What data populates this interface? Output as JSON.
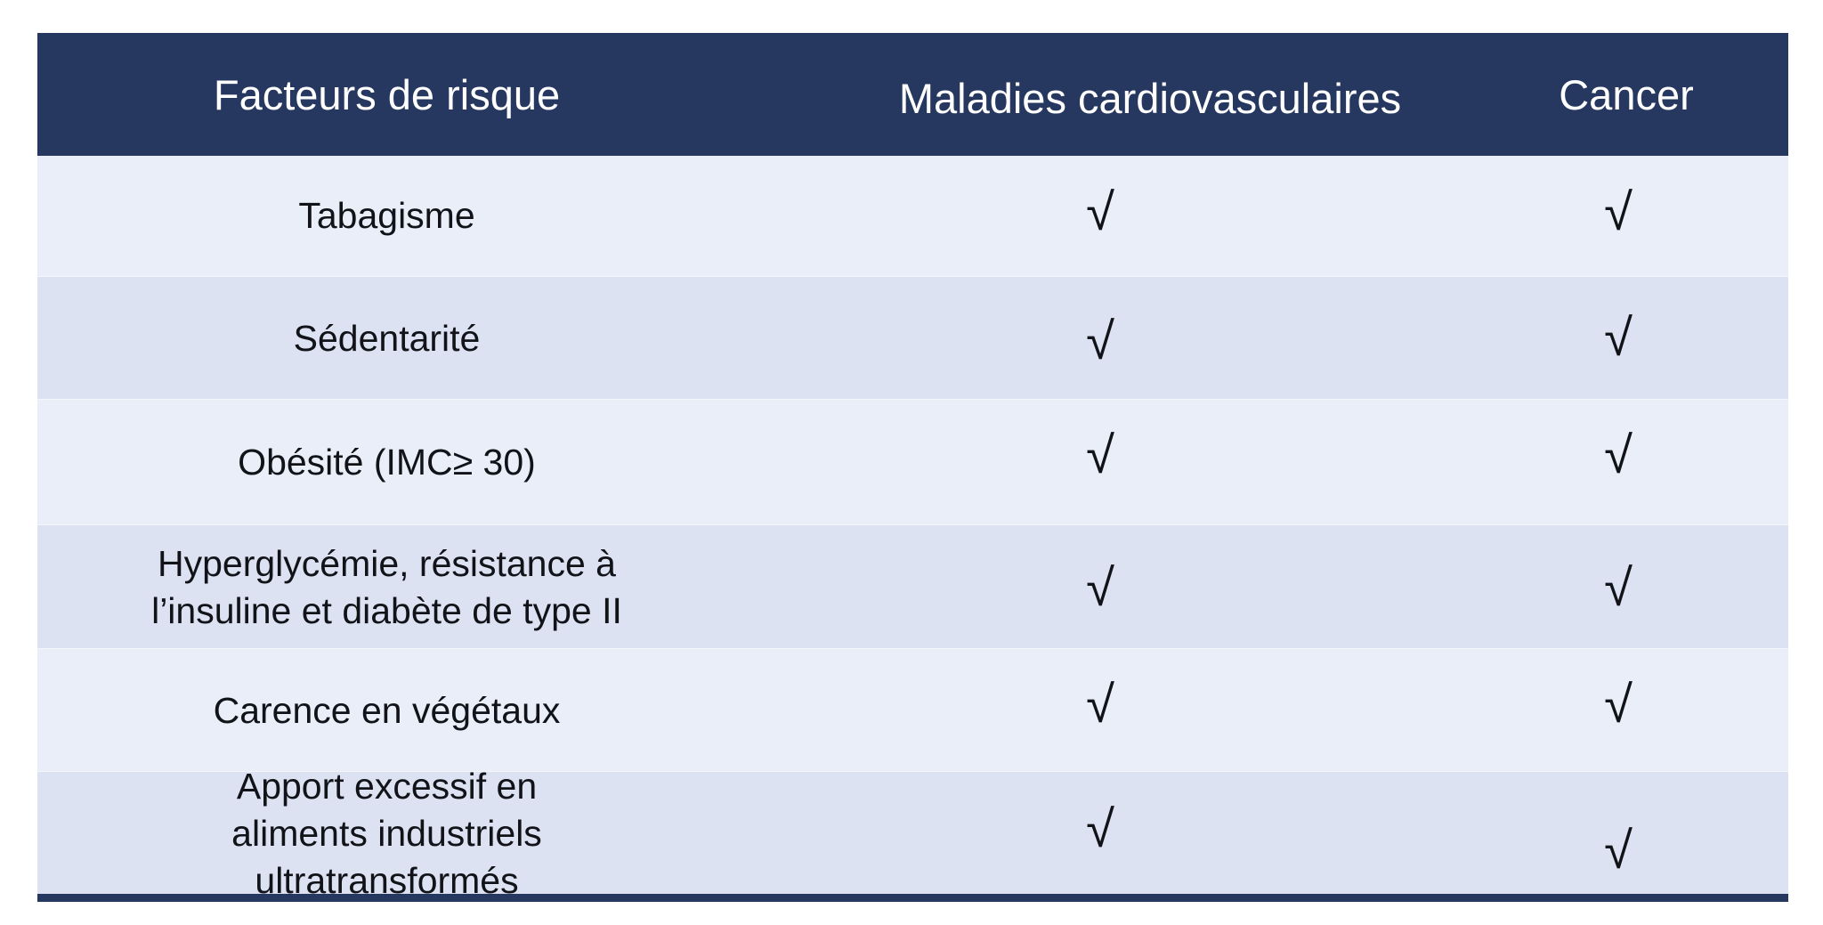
{
  "table": {
    "headers": [
      "Facteurs de risque",
      "Maladies cardiovasculaires",
      "Cancer"
    ],
    "rows": [
      {
        "factor": "Tabagisme",
        "cardiovascular": "√",
        "cancer": "√"
      },
      {
        "factor": "Sédentarité",
        "cardiovascular": "√",
        "cancer": "√"
      },
      {
        "factor": "Obésité (IMC≥ 30)",
        "cardiovascular": "√",
        "cancer": "√"
      },
      {
        "factor": "Hyperglycémie, résistance à l’insuline et diabète de type II",
        "cardiovascular": "√",
        "cancer": "√"
      },
      {
        "factor": "Carence en végétaux",
        "cardiovascular": "√",
        "cancer": "√"
      },
      {
        "factor": "Apport excessif en aliments industriels ultratransformés",
        "cardiovascular": "√",
        "cancer": "√"
      }
    ]
  },
  "colors": {
    "header_bg": "#263860",
    "row_light": "#e9eef8",
    "row_dark": "#dce2f2",
    "text": "#111318"
  }
}
